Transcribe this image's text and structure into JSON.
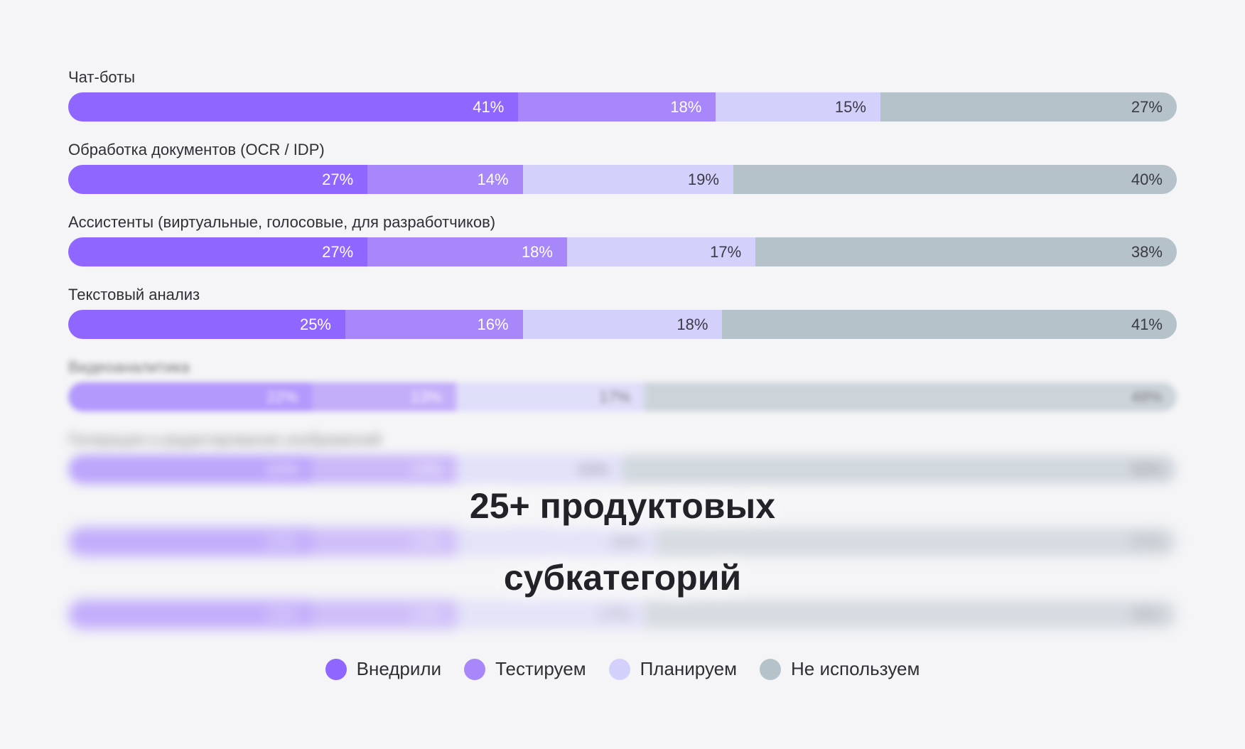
{
  "chart_data": {
    "type": "bar",
    "stacked": true,
    "orientation": "horizontal",
    "unit": "%",
    "series_names": [
      "Внедрили",
      "Тестируем",
      "Планируем",
      "Не используем"
    ],
    "colors": [
      "#8f66ff",
      "#a887fb",
      "#d3d1fb",
      "#b6c2ca"
    ],
    "text_colors": [
      "#ffffff",
      "#ffffff",
      "#3a3a44",
      "#3a3a44"
    ],
    "categories": [
      {
        "label": "Чат-боты",
        "values": [
          41,
          18,
          15,
          27
        ],
        "blur": 0
      },
      {
        "label": "Обработка документов (OCR / IDP)",
        "values": [
          27,
          14,
          19,
          40
        ],
        "blur": 0
      },
      {
        "label": "Ассистенты (виртуальные, голосовые, для разработчиков)",
        "values": [
          27,
          18,
          17,
          38
        ],
        "blur": 0
      },
      {
        "label": "Текстовый анализ",
        "values": [
          25,
          16,
          18,
          41
        ],
        "blur": 0
      },
      {
        "label": "Видеоаналитика",
        "values": [
          22,
          13,
          17,
          48
        ],
        "blur": 1
      },
      {
        "label": "Генерация и редактирование изображений",
        "values": [
          22,
          13,
          15,
          50
        ],
        "blur": 2
      },
      {
        "label": "",
        "values": [
          22,
          13,
          18,
          47
        ],
        "blur": 3
      },
      {
        "label": "",
        "values": [
          22,
          13,
          17,
          48
        ],
        "blur": 3
      }
    ]
  },
  "overlay_title_line1": "25+ продуктовых",
  "overlay_title_line2": "субкатегорий",
  "legend": [
    "Внедрили",
    "Тестируем",
    "Планируем",
    "Не используем"
  ]
}
